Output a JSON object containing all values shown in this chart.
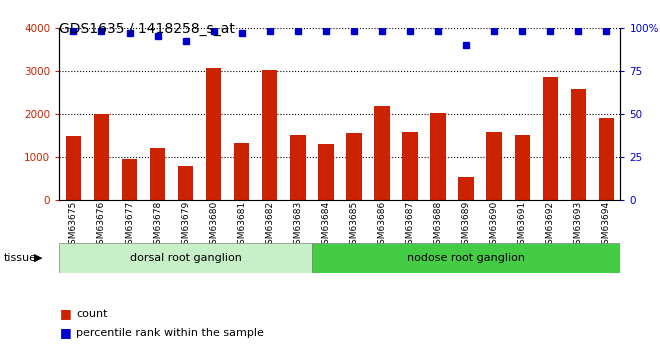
{
  "title": "GDS1635 / 1418258_s_at",
  "samples": [
    "GSM63675",
    "GSM63676",
    "GSM63677",
    "GSM63678",
    "GSM63679",
    "GSM63680",
    "GSM63681",
    "GSM63682",
    "GSM63683",
    "GSM63684",
    "GSM63685",
    "GSM63686",
    "GSM63687",
    "GSM63688",
    "GSM63689",
    "GSM63690",
    "GSM63691",
    "GSM63692",
    "GSM63693",
    "GSM63694"
  ],
  "counts": [
    1480,
    2000,
    950,
    1200,
    800,
    3060,
    1330,
    3020,
    1520,
    1310,
    1560,
    2180,
    1570,
    2010,
    535,
    1570,
    1520,
    2860,
    2580,
    1900
  ],
  "percentiles": [
    98,
    98,
    97,
    95,
    92,
    98,
    97,
    98,
    98,
    98,
    98,
    98,
    98,
    98,
    90,
    98,
    98,
    98,
    98,
    98
  ],
  "drg_count": 9,
  "nrg_count": 11,
  "tissue_label": "tissue",
  "bar_color": "#CC2200",
  "dot_color": "#0000CC",
  "ylim_left": [
    0,
    4000
  ],
  "ylim_right": [
    0,
    100
  ],
  "yticks_left": [
    0,
    1000,
    2000,
    3000,
    4000
  ],
  "yticks_right": [
    0,
    25,
    50,
    75,
    100
  ],
  "legend_count_label": "count",
  "legend_pct_label": "percentile rank within the sample",
  "plot_bg": "#ffffff",
  "xtick_bg": "#d0d0d0",
  "drg_color": "#c8f0c8",
  "nrg_color": "#44cc44",
  "title_fontsize": 10,
  "bar_width": 0.55
}
